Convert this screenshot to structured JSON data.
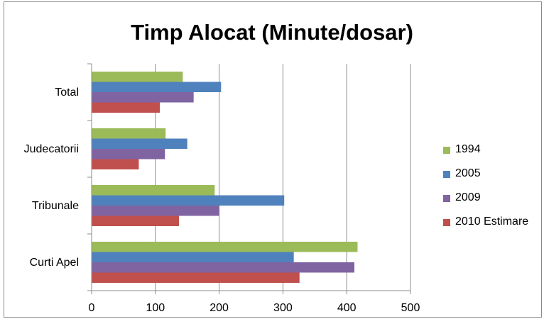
{
  "chart_data": {
    "type": "bar",
    "orientation": "horizontal",
    "title": "Timp Alocat (Minute/dosar)",
    "xlabel": "",
    "ylabel": "",
    "categories": [
      "Total",
      "Judecatorii",
      "Tribunale",
      "Curti Apel"
    ],
    "xlim": [
      0,
      500
    ],
    "x_ticks": [
      0,
      100,
      200,
      300,
      400,
      500
    ],
    "grid": "vertical major gridlines",
    "legend_position": "right",
    "series": [
      {
        "name": "1994",
        "color": "#9bbb59",
        "values": [
          143,
          116,
          193,
          417
        ]
      },
      {
        "name": "2005",
        "color": "#4f81bd",
        "values": [
          203,
          150,
          302,
          317
        ]
      },
      {
        "name": "2009",
        "color": "#8064a2",
        "values": [
          160,
          115,
          200,
          412
        ]
      },
      {
        "name": "2010 Estimare",
        "color": "#c0504d",
        "values": [
          107,
          74,
          137,
          326
        ]
      }
    ]
  }
}
